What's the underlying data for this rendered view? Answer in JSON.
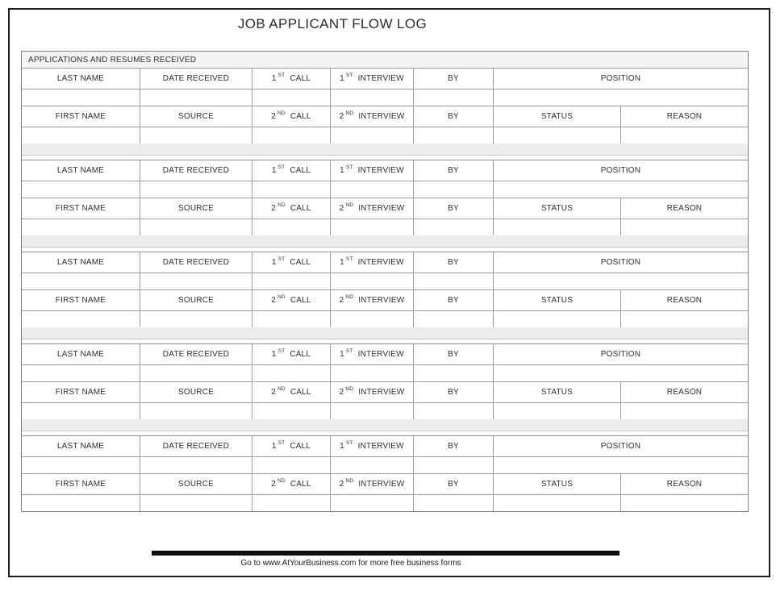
{
  "page": {
    "title": "JOB APPLICANT FLOW LOG",
    "footer_note": "Go to www.AtYourBusiness.com for more free business forms"
  },
  "table": {
    "section_header": "APPLICATIONS AND RESUMES RECEIVED",
    "num_blocks": 5,
    "row1": {
      "last_name": "LAST NAME",
      "date_received": "DATE RECEIVED",
      "call": {
        "num": "1",
        "ordinal": "ST",
        "label": "CALL"
      },
      "interview": {
        "num": "1",
        "ordinal": "ST",
        "label": "INTERVIEW"
      },
      "by": "BY",
      "position": "POSITION"
    },
    "row2": {
      "first_name": "FIRST NAME",
      "source": "SOURCE",
      "call": {
        "num": "2",
        "ordinal": "ND",
        "label": "CALL"
      },
      "interview": {
        "num": "2",
        "ordinal": "ND",
        "label": "INTERVIEW"
      },
      "by": "BY",
      "status": "STATUS",
      "reason": "REASON"
    }
  },
  "colors": {
    "frame_border": "#1b1b1b",
    "table_border": "#9b9b9b",
    "section_header_bg": "#f4f4f4",
    "spacer_bg": "#ececec",
    "footer_bar": "#0d0d0d"
  }
}
